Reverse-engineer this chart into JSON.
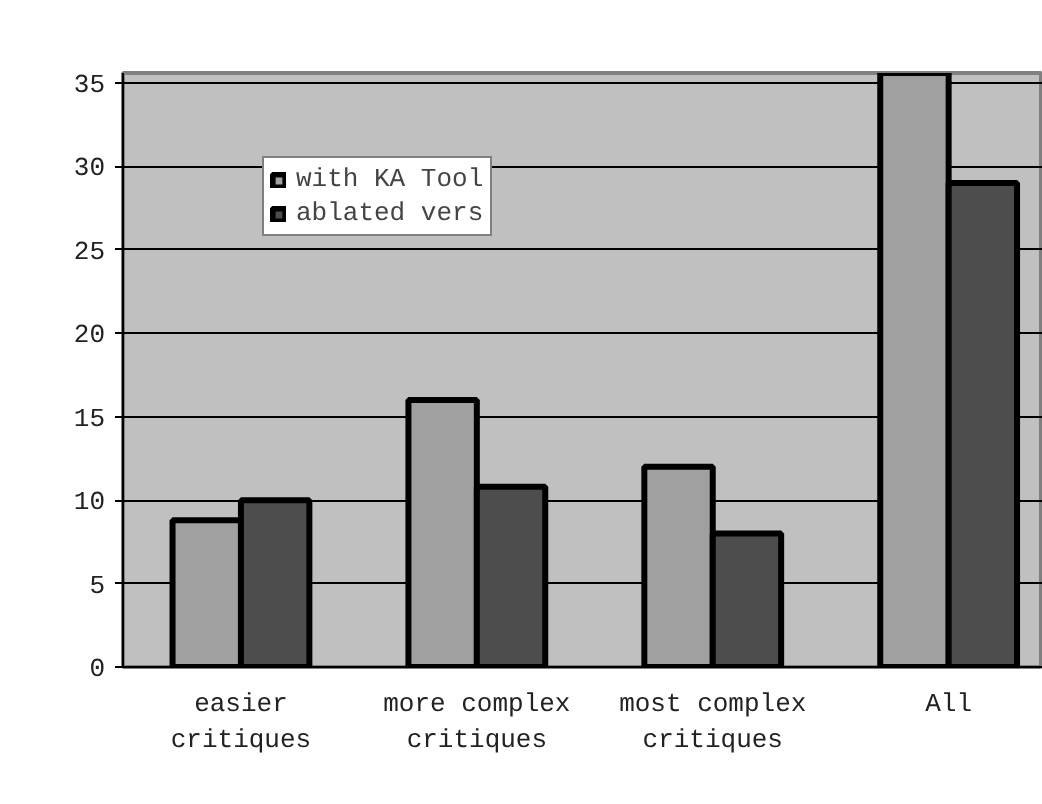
{
  "chart_data": {
    "type": "bar",
    "categories": [
      "easier critiques",
      "more complex critiques",
      "most complex critiques",
      "All"
    ],
    "series": [
      {
        "name": "with KA Tool",
        "color": "#a0a0a0",
        "values": [
          8.8,
          16,
          12,
          35.6
        ]
      },
      {
        "name": "ablated vers",
        "color": "#4d4d4d",
        "values": [
          10,
          10.8,
          8,
          29
        ]
      }
    ],
    "ylim": [
      0,
      35.6
    ],
    "yticks": [
      0,
      5,
      10,
      15,
      20,
      25,
      30,
      35
    ],
    "grid": "y",
    "legend": "top left"
  }
}
